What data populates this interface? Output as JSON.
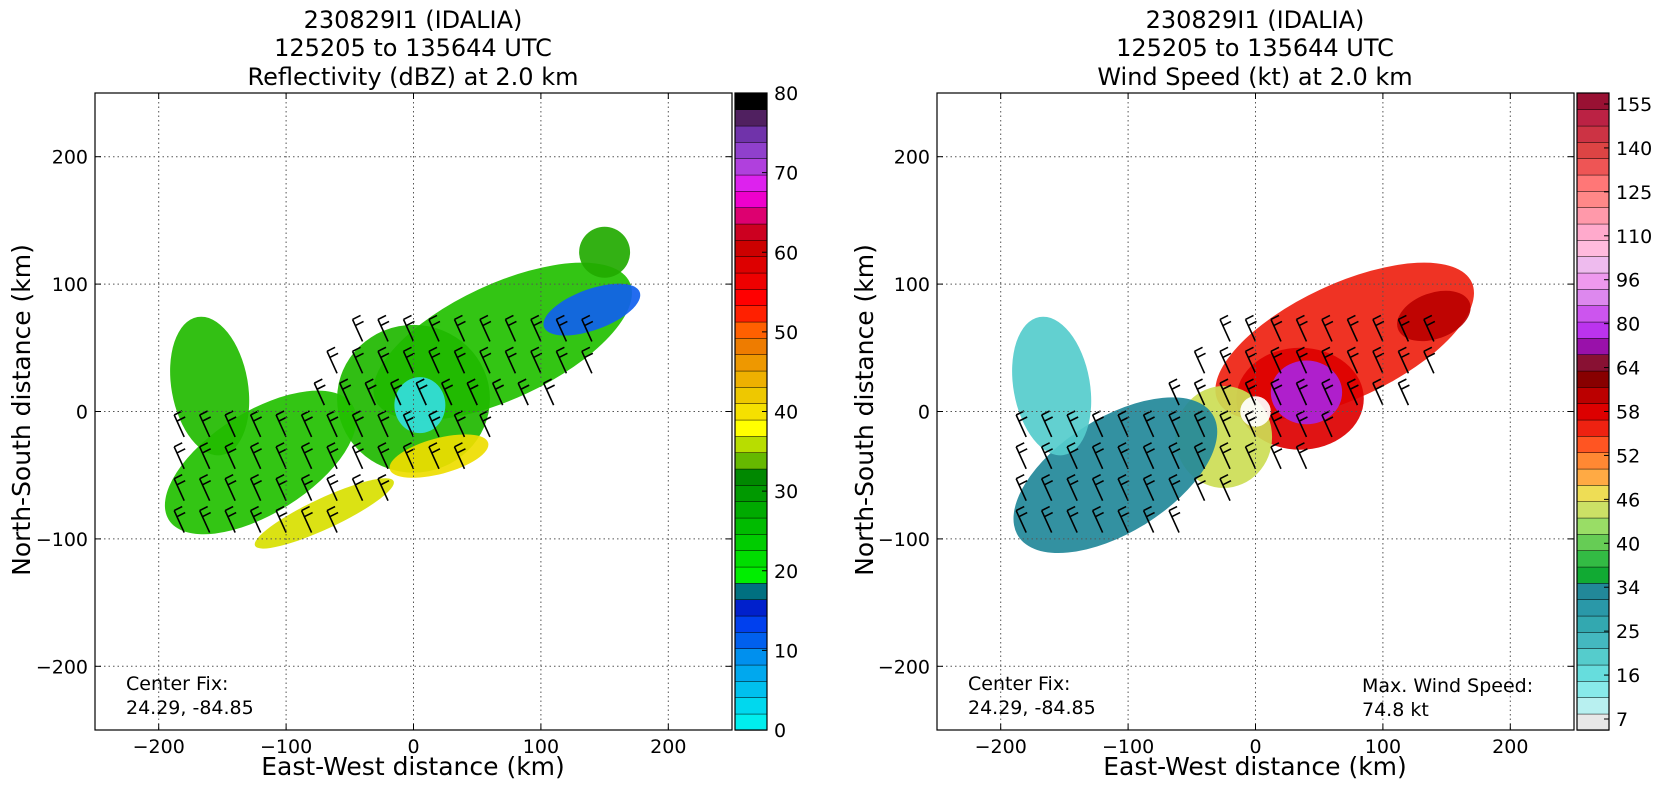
{
  "chart_data": [
    {
      "type": "heatmap",
      "title_lines": [
        "230829I1 (IDALIA)",
        "125205 to 135644 UTC",
        "Reflectivity (dBZ) at 2.0 km"
      ],
      "xlabel": "East-West distance (km)",
      "ylabel": "North-South distance (km)",
      "xlim": [
        -250,
        250
      ],
      "ylim": [
        -250,
        250
      ],
      "xticks": [
        -200,
        -100,
        0,
        100,
        200
      ],
      "yticks": [
        -200,
        -100,
        0,
        100,
        200
      ],
      "xtick_labels": [
        "−200",
        "−100",
        "0",
        "100",
        "200"
      ],
      "ytick_labels": [
        "−200",
        "−100",
        "0",
        "100",
        "200"
      ],
      "grid": true,
      "annotation_lines": [
        "Center Fix:",
        "24.29, -84.85"
      ],
      "colorbar": {
        "range": [
          0,
          80
        ],
        "tick_values": [
          0,
          10,
          20,
          30,
          40,
          50,
          60,
          70,
          80
        ],
        "tick_labels": [
          "0",
          "10",
          "20",
          "30",
          "40",
          "50",
          "60",
          "70",
          "80"
        ],
        "colors": [
          "#00eeee",
          "#00d8ee",
          "#00c0ee",
          "#00a8ee",
          "#0090ee",
          "#0060ee",
          "#0040ee",
          "#0020cc",
          "#007080",
          "#00ee00",
          "#00dd00",
          "#00cc00",
          "#00bb00",
          "#00aa00",
          "#009900",
          "#008800",
          "#66b800",
          "#b8dd00",
          "#ffff00",
          "#f5e000",
          "#eec800",
          "#eeb000",
          "#ee9800",
          "#ee7c00",
          "#ff6000",
          "#ff2000",
          "#ff0000",
          "#ee0000",
          "#dd0000",
          "#cc0000",
          "#cc0020",
          "#dd0070",
          "#ee00cc",
          "#dd22ee",
          "#b040dd",
          "#9040cc",
          "#7033aa",
          "#502060",
          "#000000"
        ]
      },
      "regions": [
        {
          "cx": 70,
          "cy": 55,
          "rx": 110,
          "ry": 45,
          "rot": -25,
          "color": "#22c000"
        },
        {
          "cx": 0,
          "cy": 10,
          "rx": 60,
          "ry": 58,
          "rot": 0,
          "color": "#1fb800"
        },
        {
          "cx": -120,
          "cy": -40,
          "rx": 85,
          "ry": 40,
          "rot": -32,
          "color": "#22c000"
        },
        {
          "cx": -160,
          "cy": 20,
          "rx": 30,
          "ry": 55,
          "rot": -10,
          "color": "#22bb00"
        },
        {
          "cx": 140,
          "cy": 80,
          "rx": 40,
          "ry": 16,
          "rot": -20,
          "color": "#1060ee"
        },
        {
          "cx": 20,
          "cy": -35,
          "rx": 40,
          "ry": 14,
          "rot": -15,
          "color": "#eedd00"
        },
        {
          "cx": -70,
          "cy": -80,
          "rx": 60,
          "ry": 12,
          "rot": -25,
          "color": "#d8e000"
        },
        {
          "cx": 5,
          "cy": 5,
          "rx": 20,
          "ry": 22,
          "rot": 0,
          "color": "#33dddd"
        },
        {
          "cx": 150,
          "cy": 125,
          "rx": 20,
          "ry": 20,
          "rot": 0,
          "color": "#22aa00"
        }
      ],
      "barb_rows": [
        {
          "y": 55,
          "x_from": -40,
          "x_to": 150
        },
        {
          "y": 30,
          "x_from": -60,
          "x_to": 140
        },
        {
          "y": 5,
          "x_from": -70,
          "x_to": 120
        },
        {
          "y": -20,
          "x_from": -180,
          "x_to": 60
        },
        {
          "y": -45,
          "x_from": -180,
          "x_to": 40
        },
        {
          "y": -70,
          "x_from": -180,
          "x_to": -20
        },
        {
          "y": -95,
          "x_from": -180,
          "x_to": -60
        }
      ]
    },
    {
      "type": "heatmap",
      "title_lines": [
        "230829I1 (IDALIA)",
        "125205 to 135644 UTC",
        "Wind Speed (kt) at 2.0 km"
      ],
      "xlabel": "East-West distance (km)",
      "ylabel": "North-South distance (km)",
      "xlim": [
        -250,
        250
      ],
      "ylim": [
        -250,
        250
      ],
      "xticks": [
        -200,
        -100,
        0,
        100,
        200
      ],
      "yticks": [
        -200,
        -100,
        0,
        100,
        200
      ],
      "xtick_labels": [
        "−200",
        "−100",
        "0",
        "100",
        "200"
      ],
      "ytick_labels": [
        "−200",
        "−100",
        "0",
        "100",
        "200"
      ],
      "grid": true,
      "annotation_lines": [
        "Center Fix:",
        "24.29, -84.85"
      ],
      "max_wind_lines": [
        "Max. Wind Speed:",
        "74.8 kt"
      ],
      "colorbar": {
        "range": [
          0,
          160
        ],
        "tick_labels": [
          "7",
          "16",
          "25",
          "34",
          "40",
          "46",
          "52",
          "58",
          "64",
          "80",
          "96",
          "110",
          "125",
          "140",
          "155"
        ],
        "colors": [
          "#e8e8e8",
          "#b8f0f0",
          "#88eaea",
          "#66dddd",
          "#55cccc",
          "#44b8c0",
          "#33a8b0",
          "#2a98a8",
          "#228899",
          "#11aa33",
          "#33bb44",
          "#66cc55",
          "#99dd66",
          "#cce066",
          "#eedd55",
          "#ffaa44",
          "#ff8833",
          "#ff5522",
          "#ee2211",
          "#dd0000",
          "#bb0000",
          "#880000",
          "#881133",
          "#9911aa",
          "#bb33ee",
          "#cc55ee",
          "#dd88ee",
          "#ee99ee",
          "#eebbee",
          "#ffbbdd",
          "#ffaacc",
          "#ff99aa",
          "#ff8888",
          "#ff7777",
          "#ee5555",
          "#dd4444",
          "#cc3344",
          "#bb2244",
          "#991133"
        ]
      },
      "regions": [
        {
          "cx": 70,
          "cy": 55,
          "rx": 110,
          "ry": 45,
          "rot": -25,
          "color": "#ee2211"
        },
        {
          "cx": 35,
          "cy": 10,
          "rx": 50,
          "ry": 40,
          "rot": 0,
          "color": "#dd0000"
        },
        {
          "cx": -25,
          "cy": -20,
          "rx": 38,
          "ry": 40,
          "rot": 0,
          "color": "#ccdd55"
        },
        {
          "cx": -110,
          "cy": -50,
          "rx": 90,
          "ry": 45,
          "rot": -32,
          "color": "#228899"
        },
        {
          "cx": -160,
          "cy": 20,
          "rx": 30,
          "ry": 55,
          "rot": -10,
          "color": "#55cccc"
        },
        {
          "cx": 40,
          "cy": 15,
          "rx": 28,
          "ry": 25,
          "rot": 0,
          "color": "#aa22dd"
        },
        {
          "cx": 140,
          "cy": 75,
          "rx": 30,
          "ry": 18,
          "rot": -20,
          "color": "#bb0000"
        },
        {
          "cx": 0,
          "cy": 0,
          "rx": 12,
          "ry": 12,
          "rot": 0,
          "color": "#ffffff"
        }
      ],
      "barb_rows": [
        {
          "y": 55,
          "x_from": -20,
          "x_to": 150
        },
        {
          "y": 30,
          "x_from": -40,
          "x_to": 140
        },
        {
          "y": 5,
          "x_from": -60,
          "x_to": 120
        },
        {
          "y": -20,
          "x_from": -180,
          "x_to": 60
        },
        {
          "y": -45,
          "x_from": -180,
          "x_to": 40
        },
        {
          "y": -70,
          "x_from": -180,
          "x_to": -20
        },
        {
          "y": -95,
          "x_from": -180,
          "x_to": -60
        }
      ]
    }
  ]
}
